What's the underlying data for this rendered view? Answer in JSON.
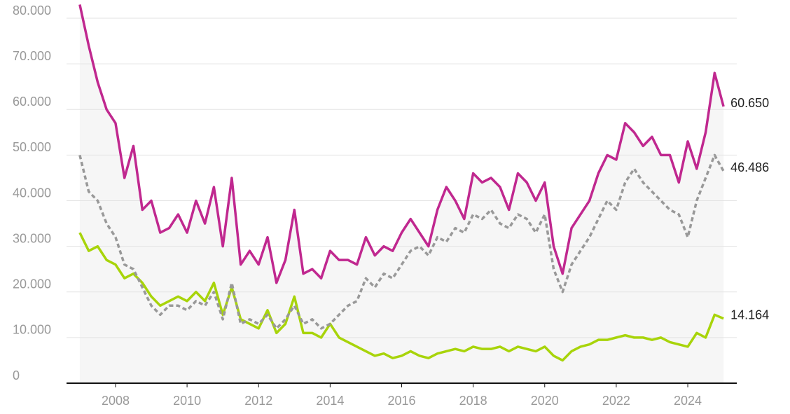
{
  "chart_data": {
    "type": "line",
    "x": [
      2007.0,
      2007.25,
      2007.5,
      2007.75,
      2008.0,
      2008.25,
      2008.5,
      2008.75,
      2009.0,
      2009.25,
      2009.5,
      2009.75,
      2010.0,
      2010.25,
      2010.5,
      2010.75,
      2011.0,
      2011.25,
      2011.5,
      2011.75,
      2012.0,
      2012.25,
      2012.5,
      2012.75,
      2013.0,
      2013.25,
      2013.5,
      2013.75,
      2014.0,
      2014.25,
      2014.5,
      2014.75,
      2015.0,
      2015.25,
      2015.5,
      2015.75,
      2016.0,
      2016.25,
      2016.5,
      2016.75,
      2017.0,
      2017.25,
      2017.5,
      2017.75,
      2018.0,
      2018.25,
      2018.5,
      2018.75,
      2019.0,
      2019.25,
      2019.5,
      2019.75,
      2020.0,
      2020.25,
      2020.5,
      2020.75,
      2021.0,
      2021.25,
      2021.5,
      2021.75,
      2022.0,
      2022.25,
      2022.5,
      2022.75,
      2023.0,
      2023.25,
      2023.5,
      2023.75,
      2024.0,
      2024.25,
      2024.5,
      2024.75,
      2025.0
    ],
    "series": [
      {
        "color": "#c0288f",
        "dashed": false,
        "area": true,
        "values": [
          83000,
          74000,
          66000,
          60000,
          57000,
          45000,
          52000,
          38000,
          40000,
          33000,
          34000,
          37000,
          33000,
          40000,
          35000,
          43000,
          30000,
          45000,
          26000,
          29000,
          26000,
          32000,
          22000,
          27000,
          38000,
          24000,
          25000,
          23000,
          29000,
          27000,
          27000,
          26000,
          32000,
          28000,
          30000,
          29000,
          33000,
          36000,
          33000,
          30000,
          38000,
          43000,
          40000,
          36000,
          46000,
          44000,
          45000,
          43000,
          38000,
          46000,
          44000,
          40000,
          44000,
          30000,
          24000,
          34000,
          37000,
          40000,
          46000,
          50000,
          49000,
          57000,
          55000,
          52000,
          54000,
          50000,
          50000,
          44000,
          53000,
          47000,
          55000,
          68000,
          60650
        ],
        "value_labels": [
          null,
          null,
          null,
          null,
          null,
          null,
          null,
          null,
          null,
          null,
          null,
          null,
          null,
          null,
          null,
          null,
          null,
          null,
          null,
          null,
          null,
          null,
          null,
          null,
          null,
          null,
          null,
          null,
          null,
          null,
          null,
          null,
          null,
          null,
          null,
          null,
          null,
          null,
          null,
          null,
          null,
          null,
          null,
          null,
          null,
          null,
          null,
          null,
          null,
          null,
          null,
          null,
          null,
          null,
          null,
          null,
          null,
          null,
          null,
          null,
          null,
          null,
          null,
          null,
          null,
          null,
          null,
          null,
          null,
          null,
          null,
          null,
          "60.650"
        ]
      },
      {
        "color": "#999999",
        "dashed": true,
        "area": false,
        "values": [
          50000,
          42000,
          40000,
          35000,
          32000,
          26000,
          25000,
          21000,
          17000,
          15000,
          17000,
          17000,
          16000,
          18000,
          17000,
          20000,
          14000,
          22000,
          13000,
          14000,
          13000,
          15000,
          12000,
          14000,
          17000,
          13000,
          14000,
          12000,
          13000,
          15000,
          17000,
          18000,
          23000,
          21000,
          24000,
          23000,
          26000,
          29000,
          30000,
          28000,
          32000,
          31000,
          34000,
          33000,
          37000,
          36000,
          38000,
          35000,
          34000,
          37000,
          36000,
          33000,
          37000,
          25000,
          20000,
          26000,
          29000,
          32000,
          36000,
          40000,
          38000,
          44000,
          47000,
          44000,
          42000,
          40000,
          38000,
          37000,
          32000,
          40000,
          45000,
          50000,
          46486
        ],
        "value_labels": [
          null,
          null,
          null,
          null,
          null,
          null,
          null,
          null,
          null,
          null,
          null,
          null,
          null,
          null,
          null,
          null,
          null,
          null,
          null,
          null,
          null,
          null,
          null,
          null,
          null,
          null,
          null,
          null,
          null,
          null,
          null,
          null,
          null,
          null,
          null,
          null,
          null,
          null,
          null,
          null,
          null,
          null,
          null,
          null,
          null,
          null,
          null,
          null,
          null,
          null,
          null,
          null,
          null,
          null,
          null,
          null,
          null,
          null,
          null,
          null,
          null,
          null,
          null,
          null,
          null,
          null,
          null,
          null,
          null,
          null,
          null,
          null,
          "46.486"
        ]
      },
      {
        "color": "#a8d40a",
        "dashed": false,
        "area": false,
        "values": [
          33000,
          29000,
          30000,
          27000,
          26000,
          23000,
          24000,
          22000,
          19000,
          17000,
          18000,
          19000,
          18000,
          20000,
          18000,
          22000,
          15000,
          21000,
          14000,
          13000,
          12000,
          16000,
          11000,
          13000,
          19000,
          11000,
          11000,
          10000,
          13000,
          10000,
          9000,
          8000,
          7000,
          6000,
          6500,
          5500,
          6000,
          7000,
          6000,
          5500,
          6500,
          7000,
          7500,
          7000,
          8000,
          7500,
          7500,
          8000,
          7000,
          8000,
          7500,
          7000,
          8000,
          6000,
          5000,
          7000,
          8000,
          8500,
          9500,
          9500,
          10000,
          10500,
          10000,
          10000,
          9500,
          10000,
          9000,
          8500,
          8000,
          11000,
          10000,
          15000,
          14164
        ],
        "value_labels": [
          null,
          null,
          null,
          null,
          null,
          null,
          null,
          null,
          null,
          null,
          null,
          null,
          null,
          null,
          null,
          null,
          null,
          null,
          null,
          null,
          null,
          null,
          null,
          null,
          null,
          null,
          null,
          null,
          null,
          null,
          null,
          null,
          null,
          null,
          null,
          null,
          null,
          null,
          null,
          null,
          null,
          null,
          null,
          null,
          null,
          null,
          null,
          null,
          null,
          null,
          null,
          null,
          null,
          null,
          null,
          null,
          null,
          null,
          null,
          null,
          null,
          null,
          null,
          null,
          null,
          null,
          null,
          null,
          null,
          null,
          null,
          null,
          "14.164"
        ]
      }
    ],
    "xlim": [
      2006.63,
      2025.37
    ],
    "xticks": [
      2008,
      2010,
      2012,
      2014,
      2016,
      2018,
      2020,
      2022,
      2024
    ],
    "ylim": [
      0,
      84000
    ],
    "yticks": [
      0,
      {
        "value": 10000,
        "label": "10.000"
      },
      {
        "value": 20000,
        "label": "20.000"
      },
      {
        "value": 30000,
        "label": "30.000"
      },
      {
        "value": 40000,
        "label": "40.000"
      },
      {
        "value": 50000,
        "label": "50.000"
      },
      {
        "value": 60000,
        "label": "60.000"
      },
      {
        "value": 70000,
        "label": "70.000"
      },
      {
        "value": 80000,
        "label": "80.000"
      }
    ],
    "grid": true
  }
}
